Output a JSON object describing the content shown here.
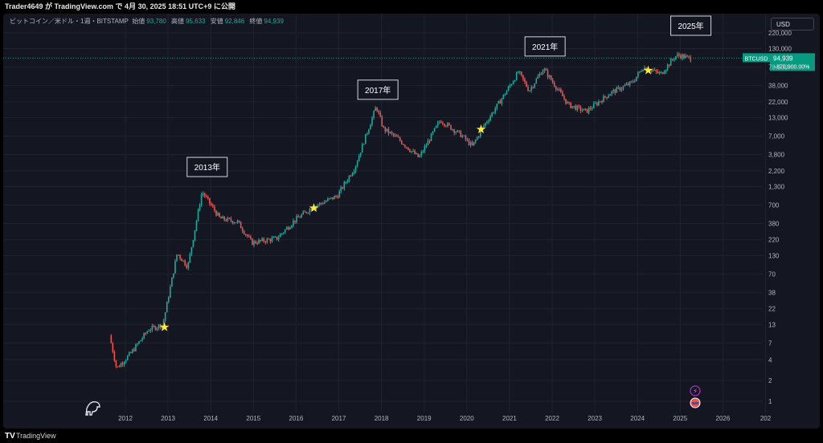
{
  "header": {
    "text": "Trader4649 が TradingView.com で 4月 30, 2025 18:51 UTC+9 に公開"
  },
  "legend": {
    "symbol": "ビットコイン／米ドル・1週・BITSTAMP",
    "open_label": "始値",
    "open": "93,780",
    "high_label": "高値",
    "high": "95,633",
    "low_label": "安値",
    "low": "92,846",
    "close_label": "終値",
    "close": "94,939"
  },
  "currency_button": "USD",
  "price_tag": {
    "symbol": "BTCUSD",
    "price": "94,939",
    "change": "+870,900.00%"
  },
  "footer": {
    "brand": "TradingView",
    "logo_text": "TV"
  },
  "colors": {
    "up": "#26a69a",
    "down": "#ef5350",
    "star": "#ffeb3b",
    "tag": "#089981",
    "bg": "#141722",
    "grid": "#1f2330"
  },
  "chart_data": {
    "type": "line",
    "style": "candlestick",
    "log_scale": true,
    "grid": true,
    "x_ticks": [
      "2012",
      "2013",
      "2014",
      "2015",
      "2016",
      "2017",
      "2018",
      "2019",
      "2020",
      "2021",
      "2022",
      "2023",
      "2024",
      "2025",
      "2026",
      "202"
    ],
    "y_ticks": [
      "220,000",
      "130,000",
      "70,000",
      "38,000",
      "22,000",
      "13,000",
      "7,000",
      "3,800",
      "2,200",
      "1,300",
      "700",
      "380",
      "220",
      "130",
      "70",
      "38",
      "22",
      "13",
      "7",
      "4",
      "2",
      "1"
    ],
    "y_tick_values": [
      220000,
      130000,
      70000,
      38000,
      22000,
      13000,
      7000,
      3800,
      2200,
      1300,
      700,
      380,
      220,
      130,
      70,
      38,
      22,
      13,
      7,
      4,
      2,
      1
    ],
    "price_path": [
      {
        "date": "2011-09",
        "price": 9
      },
      {
        "date": "2011-11",
        "price": 3
      },
      {
        "date": "2012-03",
        "price": 5
      },
      {
        "date": "2012-08",
        "price": 11
      },
      {
        "date": "2012-12",
        "price": 13
      },
      {
        "date": "2013-04",
        "price": 140
      },
      {
        "date": "2013-07",
        "price": 90
      },
      {
        "date": "2013-11",
        "price": 1100
      },
      {
        "date": "2014-04",
        "price": 450
      },
      {
        "date": "2014-09",
        "price": 400
      },
      {
        "date": "2015-01",
        "price": 200
      },
      {
        "date": "2015-08",
        "price": 230
      },
      {
        "date": "2016-01",
        "price": 420
      },
      {
        "date": "2016-06",
        "price": 650
      },
      {
        "date": "2017-01",
        "price": 950
      },
      {
        "date": "2017-06",
        "price": 2500
      },
      {
        "date": "2017-12",
        "price": 19000
      },
      {
        "date": "2018-02",
        "price": 9000
      },
      {
        "date": "2018-06",
        "price": 6500
      },
      {
        "date": "2018-12",
        "price": 3400
      },
      {
        "date": "2019-06",
        "price": 12000
      },
      {
        "date": "2019-12",
        "price": 7200
      },
      {
        "date": "2020-03",
        "price": 5000
      },
      {
        "date": "2020-06",
        "price": 9500
      },
      {
        "date": "2020-12",
        "price": 28000
      },
      {
        "date": "2021-04",
        "price": 60000
      },
      {
        "date": "2021-07",
        "price": 32000
      },
      {
        "date": "2021-11",
        "price": 67000
      },
      {
        "date": "2022-06",
        "price": 20000
      },
      {
        "date": "2022-11",
        "price": 16000
      },
      {
        "date": "2023-06",
        "price": 30000
      },
      {
        "date": "2023-12",
        "price": 42000
      },
      {
        "date": "2024-03",
        "price": 70000
      },
      {
        "date": "2024-08",
        "price": 56000
      },
      {
        "date": "2024-12",
        "price": 100000
      },
      {
        "date": "2025-01",
        "price": 105000
      },
      {
        "date": "2025-04",
        "price": 94939
      }
    ],
    "stars": [
      {
        "date": "2012-12",
        "price": 12
      },
      {
        "date": "2016-06",
        "price": 640
      },
      {
        "date": "2020-05",
        "price": 8800
      },
      {
        "date": "2024-04",
        "price": 63000
      }
    ],
    "annotations": [
      {
        "label": "2013年",
        "date": "2013-12",
        "price": 2500
      },
      {
        "label": "2017年",
        "date": "2017-12",
        "price": 33000
      },
      {
        "label": "2021年",
        "date": "2021-11",
        "price": 140000
      },
      {
        "label": "2025年",
        "date": "2025-04",
        "price": 280000
      }
    ],
    "current_price": 94939
  }
}
